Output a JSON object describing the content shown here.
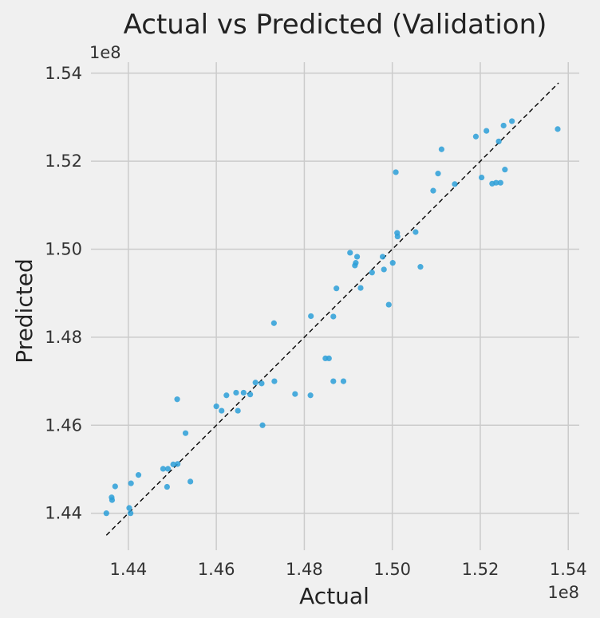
{
  "chart_data": {
    "type": "scatter",
    "title": "Actual vs Predicted (Validation)",
    "xlabel": "Actual",
    "ylabel": "Predicted",
    "x_exponent_label": "1e8",
    "y_exponent_label": "1e8",
    "xlim": [
      1.4315,
      1.5425
    ],
    "ylim": [
      1.4316,
      1.5425
    ],
    "x_ticks": [
      1.44,
      1.46,
      1.48,
      1.5,
      1.52,
      1.54
    ],
    "x_tick_labels": [
      "1.44",
      "1.46",
      "1.48",
      "1.50",
      "1.52",
      "1.54"
    ],
    "y_ticks": [
      1.44,
      1.46,
      1.48,
      1.5,
      1.52,
      1.54
    ],
    "y_tick_labels": [
      "1.44",
      "1.46",
      "1.48",
      "1.50",
      "1.52",
      "1.54"
    ],
    "grid": true,
    "point_color": "#2b9fd8",
    "reference_line": {
      "style": "dashed",
      "color": "#000000",
      "from": [
        1.435,
        1.435
      ],
      "to": [
        1.5378,
        1.5378
      ]
    },
    "points": [
      [
        1.435,
        1.44
      ],
      [
        1.4362,
        1.4436
      ],
      [
        1.4363,
        1.443
      ],
      [
        1.437,
        1.4461
      ],
      [
        1.4402,
        1.4412
      ],
      [
        1.4405,
        1.44
      ],
      [
        1.4406,
        1.4468
      ],
      [
        1.4423,
        1.4487
      ],
      [
        1.4479,
        1.4501
      ],
      [
        1.449,
        1.4501
      ],
      [
        1.4488,
        1.446
      ],
      [
        1.4502,
        1.4511
      ],
      [
        1.4512,
        1.4512
      ],
      [
        1.4511,
        1.4659
      ],
      [
        1.453,
        1.4582
      ],
      [
        1.4541,
        1.4472
      ],
      [
        1.46,
        1.4643
      ],
      [
        1.4612,
        1.4633
      ],
      [
        1.4623,
        1.4668
      ],
      [
        1.4645,
        1.4674
      ],
      [
        1.4649,
        1.4633
      ],
      [
        1.4662,
        1.4674
      ],
      [
        1.4677,
        1.467
      ],
      [
        1.4689,
        1.4697
      ],
      [
        1.4703,
        1.4695
      ],
      [
        1.4705,
        1.46
      ],
      [
        1.4732,
        1.47
      ],
      [
        1.4731,
        1.4832
      ],
      [
        1.4779,
        1.4671
      ],
      [
        1.4814,
        1.4668
      ],
      [
        1.4815,
        1.4848
      ],
      [
        1.4848,
        1.4752
      ],
      [
        1.4856,
        1.4752
      ],
      [
        1.4866,
        1.47
      ],
      [
        1.4866,
        1.4847
      ],
      [
        1.4873,
        1.4911
      ],
      [
        1.4889,
        1.47
      ],
      [
        1.4904,
        1.4992
      ],
      [
        1.4915,
        1.4963
      ],
      [
        1.4917,
        1.4969
      ],
      [
        1.492,
        1.4983
      ],
      [
        1.4928,
        1.4912
      ],
      [
        1.4954,
        1.4947
      ],
      [
        1.4978,
        1.4983
      ],
      [
        1.4981,
        1.4954
      ],
      [
        1.4992,
        1.4874
      ],
      [
        1.5001,
        1.4969
      ],
      [
        1.5008,
        1.5175
      ],
      [
        1.5011,
        1.5037
      ],
      [
        1.5012,
        1.5029
      ],
      [
        1.5053,
        1.5039
      ],
      [
        1.5064,
        1.496
      ],
      [
        1.5093,
        1.5133
      ],
      [
        1.5104,
        1.5172
      ],
      [
        1.5112,
        1.5227
      ],
      [
        1.5142,
        1.5148
      ],
      [
        1.519,
        1.5256
      ],
      [
        1.5203,
        1.5163
      ],
      [
        1.5214,
        1.5269
      ],
      [
        1.5227,
        1.5149
      ],
      [
        1.5236,
        1.5151
      ],
      [
        1.5242,
        1.5245
      ],
      [
        1.5246,
        1.5151
      ],
      [
        1.5253,
        1.5281
      ],
      [
        1.5256,
        1.5181
      ],
      [
        1.5272,
        1.5291
      ],
      [
        1.5376,
        1.5273
      ]
    ]
  }
}
